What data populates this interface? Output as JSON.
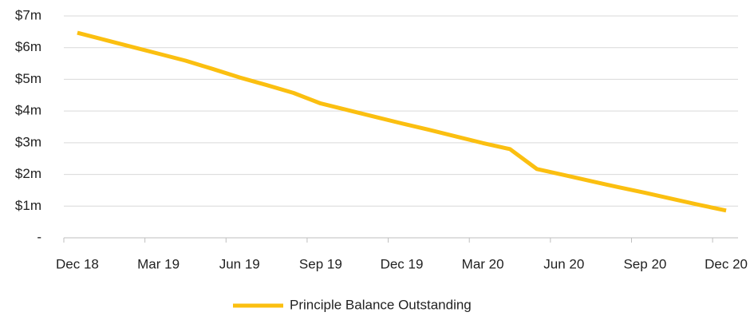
{
  "chart_data": {
    "type": "line",
    "categories": [
      "Dec 18",
      null,
      null,
      "Mar 19",
      null,
      null,
      "Jun 19",
      null,
      null,
      "Sep 19",
      null,
      null,
      "Dec 19",
      null,
      null,
      "Mar 20",
      null,
      null,
      "Jun 20",
      null,
      null,
      "Sep 20",
      null,
      null,
      "Dec 20"
    ],
    "series": [
      {
        "name": "Principle Balance Outstanding",
        "color": "#fbbf10",
        "values": [
          6.47,
          6.25,
          6.03,
          5.81,
          5.59,
          5.33,
          5.06,
          4.82,
          4.57,
          4.24,
          4.03,
          3.82,
          3.61,
          3.41,
          3.2,
          2.99,
          2.8,
          2.17,
          1.98,
          1.79,
          1.6,
          1.42,
          1.23,
          1.04,
          0.86
        ]
      }
    ],
    "ylim": [
      0,
      7
    ],
    "yticks": [
      {
        "value": 0,
        "label": "-"
      },
      {
        "value": 1,
        "label": "$1m"
      },
      {
        "value": 2,
        "label": "$2m"
      },
      {
        "value": 3,
        "label": "$3m"
      },
      {
        "value": 4,
        "label": "$4m"
      },
      {
        "value": 5,
        "label": "$5m"
      },
      {
        "value": 6,
        "label": "$6m"
      },
      {
        "value": 7,
        "label": "$7m"
      }
    ],
    "grid": true,
    "legend": "bottom"
  }
}
